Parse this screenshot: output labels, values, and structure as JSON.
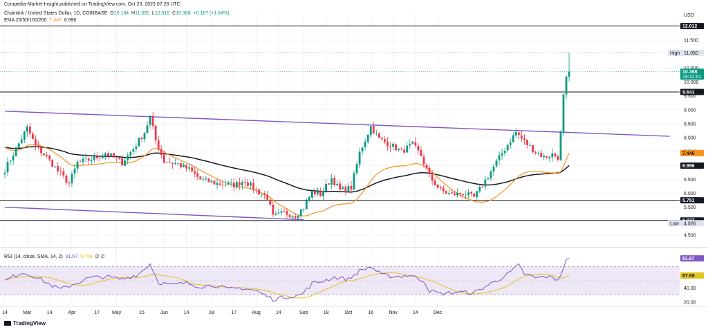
{
  "header": {
    "publisher": "Coinpedia-Market-Insight published on TradingView.com, Oct 23, 2023 07:28 UTC",
    "symbol": "Chainlink / United States Dollar, 1D, COINBASE",
    "ohlc": {
      "O": "10.194",
      "H": "11.050",
      "L": "10.015",
      "C": "10.368",
      "change": "+0.167 (+1.64%)"
    },
    "ema_label": "EMA 20/50/100/200",
    "ema_values": [
      "7.446",
      "6.996"
    ],
    "rsi_label": "RSI (14, close, SMA, 14, 2)",
    "rsi_values": [
      "81.67",
      "57.59"
    ],
    "rsi_extra": "∅ ∅"
  },
  "currency": "USD",
  "logo": "TradingView",
  "colors": {
    "up": "#089981",
    "down": "#f23645",
    "ema20": "#f7931a",
    "ema50": "#131722",
    "trend": "#7e57c2",
    "rsi": "#7e57c2",
    "rsi_ma": "#e2c21e",
    "rsi_band": "#ede7f6",
    "grid": "#f0f3fa"
  },
  "chart_data": [
    {
      "type": "candlestick",
      "title": "Chainlink / United States Dollar, 1D, COINBASE",
      "y_axis": {
        "scale": "linear",
        "ylim": [
          4.2,
          12.2
        ],
        "ticks": [
          "11.500",
          "10.500",
          "10.000",
          "9.500",
          "9.000",
          "8.500",
          "8.000",
          "7.500",
          "7.000",
          "6.500",
          "6.000",
          "5.500",
          "5.000",
          "4.500"
        ]
      },
      "x_axis": {
        "ticks": [
          "14",
          "Mar",
          "14",
          "Apr",
          "17",
          "May",
          "15",
          "Jun",
          "14",
          "Jul",
          "17",
          "Aug",
          "14",
          "Sep",
          "18",
          "Oct",
          "16",
          "Nov",
          "14",
          "Dec"
        ]
      },
      "ohlc_keyframes": [
        {
          "i": 0,
          "close": 6.85
        },
        {
          "i": 4,
          "close": 7.6
        },
        {
          "i": 8,
          "close": 8.35
        },
        {
          "i": 11,
          "close": 7.7
        },
        {
          "i": 15,
          "close": 7.3
        },
        {
          "i": 19,
          "close": 6.8
        },
        {
          "i": 23,
          "close": 6.35
        },
        {
          "i": 26,
          "close": 7.1
        },
        {
          "i": 32,
          "close": 7.25
        },
        {
          "i": 36,
          "close": 7.45
        },
        {
          "i": 42,
          "close": 7.1
        },
        {
          "i": 46,
          "close": 7.6
        },
        {
          "i": 50,
          "close": 8.2
        },
        {
          "i": 52,
          "close": 8.75
        },
        {
          "i": 54,
          "close": 7.9
        },
        {
          "i": 57,
          "close": 7.15
        },
        {
          "i": 62,
          "close": 7.05
        },
        {
          "i": 66,
          "close": 6.85
        },
        {
          "i": 70,
          "close": 6.5
        },
        {
          "i": 76,
          "close": 6.35
        },
        {
          "i": 82,
          "close": 6.3
        },
        {
          "i": 86,
          "close": 6.45
        },
        {
          "i": 90,
          "close": 6.1
        },
        {
          "i": 94,
          "close": 5.85
        },
        {
          "i": 96,
          "close": 5.15
        },
        {
          "i": 100,
          "close": 5.3
        },
        {
          "i": 104,
          "close": 5.2
        },
        {
          "i": 107,
          "close": 5.5
        },
        {
          "i": 110,
          "close": 6.05
        },
        {
          "i": 113,
          "close": 5.95
        },
        {
          "i": 117,
          "close": 6.55
        },
        {
          "i": 120,
          "close": 6.1
        },
        {
          "i": 124,
          "close": 6.2
        },
        {
          "i": 127,
          "close": 7.45
        },
        {
          "i": 131,
          "close": 8.4
        },
        {
          "i": 134,
          "close": 7.95
        },
        {
          "i": 138,
          "close": 7.75
        },
        {
          "i": 142,
          "close": 7.5
        },
        {
          "i": 146,
          "close": 7.75
        },
        {
          "i": 149,
          "close": 7.35
        },
        {
          "i": 152,
          "close": 6.6
        },
        {
          "i": 156,
          "close": 6.1
        },
        {
          "i": 160,
          "close": 5.95
        },
        {
          "i": 164,
          "close": 6.0
        },
        {
          "i": 168,
          "close": 5.85
        },
        {
          "i": 171,
          "close": 6.3
        },
        {
          "i": 175,
          "close": 6.95
        },
        {
          "i": 179,
          "close": 7.6
        },
        {
          "i": 183,
          "close": 8.2
        },
        {
          "i": 186,
          "close": 7.85
        },
        {
          "i": 190,
          "close": 7.5
        },
        {
          "i": 193,
          "close": 7.3
        },
        {
          "i": 196,
          "close": 7.4
        },
        {
          "i": 198,
          "close": 7.3
        },
        {
          "i": 199,
          "close": 8.2
        },
        {
          "i": 200,
          "close": 9.55
        },
        {
          "i": 201,
          "close": 10.2
        },
        {
          "i": 202,
          "close": 10.368
        }
      ],
      "last_candle": {
        "open": 10.194,
        "high": 11.05,
        "low": 10.015,
        "close": 10.368
      },
      "horizontal_levels": [
        12.012,
        9.641,
        5.751,
        5.027
      ],
      "price_labels": [
        {
          "text": "12.012",
          "value": 12.012,
          "kind": "level"
        },
        {
          "text": "High",
          "value_text": "11.050",
          "value": 11.05,
          "kind": "high"
        },
        {
          "text": "10.368",
          "sub": "16:31:01",
          "value": 10.368,
          "kind": "last"
        },
        {
          "text": "9.641",
          "value": 9.641,
          "kind": "level"
        },
        {
          "text": "7.446",
          "value": 7.446,
          "kind": "ema20"
        },
        {
          "text": "6.996",
          "value": 6.996,
          "kind": "ema50"
        },
        {
          "text": "5.751",
          "value": 5.751,
          "kind": "level"
        },
        {
          "text": "5.027",
          "value": 5.027,
          "kind": "level"
        },
        {
          "text": "Low",
          "value_text": "4.926",
          "value": 4.926,
          "kind": "low"
        }
      ],
      "trendlines": [
        {
          "from": {
            "i": 0,
            "value": 8.95
          },
          "to": {
            "i": 238,
            "value": 8.05
          }
        },
        {
          "from": {
            "i": 0,
            "value": 5.5
          },
          "to": {
            "i": 107,
            "value": 5.05
          }
        }
      ],
      "ema20_last": 7.446,
      "ema200_last": 6.996
    },
    {
      "type": "line",
      "title": "RSI (14, close, SMA, 14, 2)",
      "y_axis": {
        "ylim": [
          17,
          93
        ],
        "ticks": [
          "40.00",
          "20.00"
        ],
        "band": [
          30,
          70
        ],
        "midline": 50
      },
      "rsi_keyframes": [
        {
          "i": 0,
          "v": 50
        },
        {
          "i": 6,
          "v": 62
        },
        {
          "i": 11,
          "v": 56
        },
        {
          "i": 16,
          "v": 45
        },
        {
          "i": 20,
          "v": 38
        },
        {
          "i": 25,
          "v": 46
        },
        {
          "i": 30,
          "v": 54
        },
        {
          "i": 36,
          "v": 56
        },
        {
          "i": 42,
          "v": 52
        },
        {
          "i": 48,
          "v": 60
        },
        {
          "i": 52,
          "v": 74
        },
        {
          "i": 55,
          "v": 48
        },
        {
          "i": 60,
          "v": 44
        },
        {
          "i": 65,
          "v": 47
        },
        {
          "i": 70,
          "v": 42
        },
        {
          "i": 75,
          "v": 44
        },
        {
          "i": 80,
          "v": 38
        },
        {
          "i": 85,
          "v": 40
        },
        {
          "i": 90,
          "v": 36
        },
        {
          "i": 96,
          "v": 24
        },
        {
          "i": 100,
          "v": 27
        },
        {
          "i": 106,
          "v": 30
        },
        {
          "i": 110,
          "v": 46
        },
        {
          "i": 114,
          "v": 50
        },
        {
          "i": 118,
          "v": 55
        },
        {
          "i": 123,
          "v": 52
        },
        {
          "i": 127,
          "v": 64
        },
        {
          "i": 131,
          "v": 70
        },
        {
          "i": 135,
          "v": 58
        },
        {
          "i": 140,
          "v": 56
        },
        {
          "i": 145,
          "v": 58
        },
        {
          "i": 150,
          "v": 50
        },
        {
          "i": 152,
          "v": 36
        },
        {
          "i": 156,
          "v": 32
        },
        {
          "i": 162,
          "v": 34
        },
        {
          "i": 168,
          "v": 33
        },
        {
          "i": 172,
          "v": 42
        },
        {
          "i": 176,
          "v": 50
        },
        {
          "i": 181,
          "v": 62
        },
        {
          "i": 184,
          "v": 72
        },
        {
          "i": 186,
          "v": 60
        },
        {
          "i": 190,
          "v": 54
        },
        {
          "i": 194,
          "v": 56
        },
        {
          "i": 198,
          "v": 52
        },
        {
          "i": 200,
          "v": 68
        },
        {
          "i": 201,
          "v": 80
        },
        {
          "i": 202,
          "v": 81.67
        }
      ],
      "rsi_last": 81.67,
      "rsi_ma_last": 57.59
    }
  ]
}
